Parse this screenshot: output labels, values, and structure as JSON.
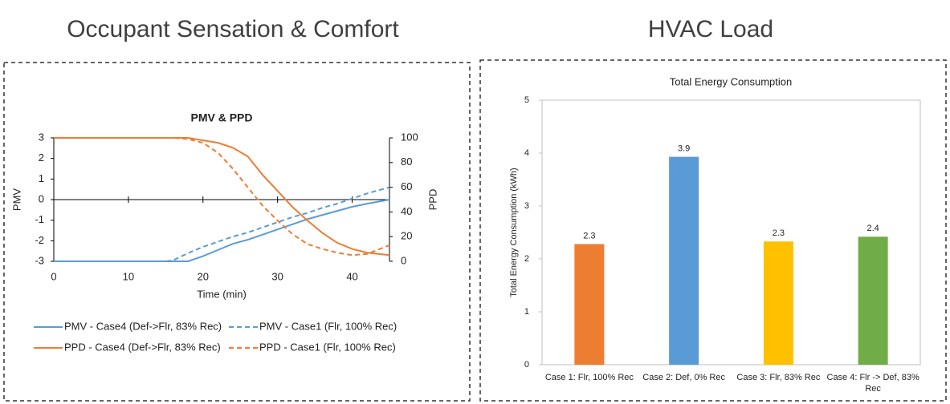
{
  "chart_data": [
    {
      "type": "line",
      "heading": "Occupant Sensation & Comfort",
      "title": "PMV & PPD",
      "x_label": "Time (min)",
      "y_label": "PMV",
      "y2_label": "PPD",
      "x": [
        0,
        5,
        10,
        15,
        16,
        18,
        20,
        22,
        24,
        26,
        28,
        30,
        32,
        34,
        36,
        38,
        40,
        42,
        45
      ],
      "xlim": [
        0,
        45
      ],
      "xticks": [
        0,
        10,
        20,
        30,
        40
      ],
      "ylim": [
        -3,
        3
      ],
      "yticks": [
        -3,
        -2,
        -1,
        0,
        1,
        2,
        3
      ],
      "y2lim": [
        0,
        100
      ],
      "y2ticks": [
        0,
        20,
        40,
        60,
        80,
        100
      ],
      "series": [
        {
          "name": "PMV - Case4 (Def->Flr, 83% Rec)",
          "color": "#5b9bd5",
          "dashed": false,
          "values": [
            -3,
            -3,
            -3,
            -3,
            -3,
            -3,
            -2.75,
            -2.45,
            -2.15,
            -1.95,
            -1.7,
            -1.45,
            -1.2,
            -0.95,
            -0.75,
            -0.55,
            -0.35,
            -0.2,
            0
          ]
        },
        {
          "name": "PMV - Case1 (Flr, 100% Rec)",
          "color": "#5b9bd5",
          "dashed": true,
          "values": [
            -3,
            -3,
            -3,
            -3,
            -2.95,
            -2.6,
            -2.3,
            -2.05,
            -1.8,
            -1.6,
            -1.35,
            -1.1,
            -0.85,
            -0.65,
            -0.4,
            -0.2,
            0.05,
            0.3,
            0.6
          ]
        },
        {
          "name": "PPD - Case4 (Def->Flr, 83% Rec)",
          "color": "#ed7d31",
          "dashed": false,
          "axis": "y2",
          "values": [
            100,
            100,
            100,
            100,
            100,
            100,
            98,
            96,
            92,
            85,
            70,
            57,
            44,
            33,
            23,
            15,
            10,
            7,
            5
          ]
        },
        {
          "name": "PPD - Case1 (Flr, 100% Rec)",
          "color": "#ed7d31",
          "dashed": true,
          "axis": "y2",
          "values": [
            100,
            100,
            100,
            100,
            100,
            99,
            96,
            88,
            75,
            60,
            45,
            33,
            22,
            14,
            10,
            7,
            5,
            6,
            13
          ]
        }
      ]
    },
    {
      "type": "bar",
      "heading": "HVAC Load",
      "title": "Total Energy Consumption",
      "y_label": "Total Energy Consumption (kWh)",
      "categories": [
        "Case 1: Flr, 100% Rec",
        "Case 2: Def, 0% Rec",
        "Case 3: Flr, 83% Rec",
        "Case 4: Flr -> Def, 83% Rec"
      ],
      "values": [
        2.28,
        3.93,
        2.33,
        2.42
      ],
      "value_labels": [
        "2.3",
        "3.9",
        "2.3",
        "2.4"
      ],
      "colors": [
        "#ed7d31",
        "#5b9bd5",
        "#ffc000",
        "#70ad47"
      ],
      "ylim": [
        0,
        5
      ],
      "yticks": [
        0,
        1,
        2,
        3,
        4,
        5
      ]
    }
  ]
}
